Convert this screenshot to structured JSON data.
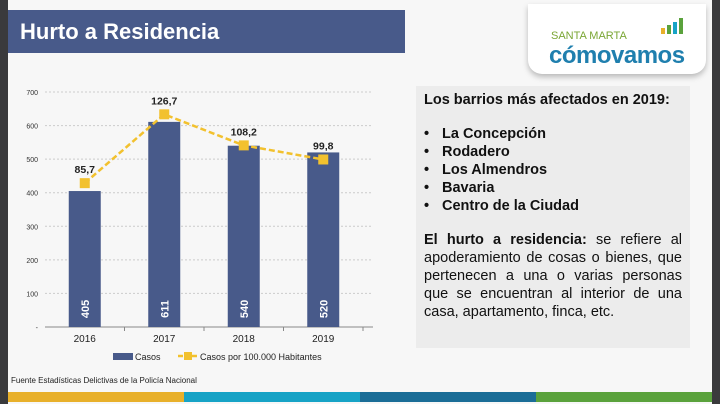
{
  "title": "Hurto a Residencia",
  "logo": {
    "line1": "SANTA MARTA",
    "line2": "cómovamos"
  },
  "panel": {
    "heading": "Los barrios más afectados en 2019:",
    "barrios": [
      "La Concepción",
      "Rodadero",
      "Los Almendros",
      "Bavaria",
      "Centro de la Ciudad"
    ],
    "definition_term": "El hurto a residencia:",
    "definition_text": " se refiere al apoderamiento de cosas o bienes, que pertenecen a una o varias personas que se encuentran al interior de una casa, apartamento, finca, etc."
  },
  "source": "Fuente Estadísticas Delictivas de la Policía Nacional",
  "colors": {
    "bar": "#485a8a",
    "line": "#f2c12e",
    "title_bg": "#485a8a",
    "strip": [
      "#e8b02a",
      "#17a3c6",
      "#1b6d97",
      "#5aa23c"
    ]
  },
  "chart_data": {
    "type": "bar",
    "categories": [
      "2016",
      "2017",
      "2018",
      "2019"
    ],
    "series": [
      {
        "name": "Casos",
        "type": "bar",
        "values": [
          405,
          611,
          540,
          520
        ]
      },
      {
        "name": "Casos por 100.000 Habitantes",
        "type": "line",
        "values": [
          85.7,
          126.7,
          108.2,
          99.8
        ],
        "labels": [
          "85,7",
          "126,7",
          "108,2",
          "99,8"
        ]
      }
    ],
    "yticks": [
      "-",
      "100",
      "200",
      "300",
      "400",
      "500",
      "600",
      "700"
    ],
    "ylim": [
      0,
      700
    ],
    "grid": true,
    "legend": "bottom"
  }
}
